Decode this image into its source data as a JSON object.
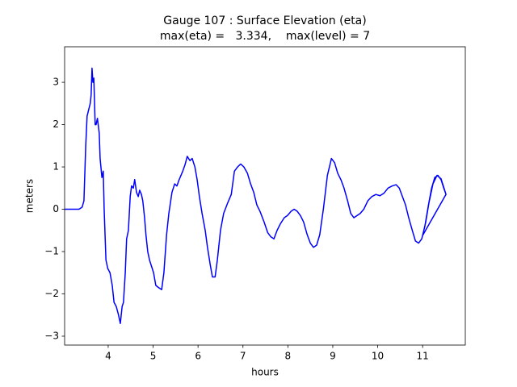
{
  "chart_data": {
    "type": "line",
    "title": [
      "Gauge 107 : Surface Elevation (eta)",
      "max(eta) =   3.334,    max(level) = 7"
    ],
    "xlabel": "hours",
    "ylabel": "meters",
    "color": "blue",
    "x": [
      3.03,
      3.2,
      3.35,
      3.42,
      3.46,
      3.5,
      3.53,
      3.6,
      3.62,
      3.64,
      3.66,
      3.68,
      3.71,
      3.73,
      3.76,
      3.8,
      3.82,
      3.86,
      3.89,
      3.91,
      3.93,
      3.95,
      3.99,
      4.04,
      4.09,
      4.13,
      4.18,
      4.23,
      4.27,
      4.31,
      4.34,
      4.38,
      4.41,
      4.45,
      4.49,
      4.52,
      4.56,
      4.59,
      4.63,
      4.67,
      4.7,
      4.74,
      4.77,
      4.81,
      4.84,
      4.88,
      4.92,
      4.95,
      5.01,
      5.06,
      5.12,
      5.19,
      5.24,
      5.3,
      5.35,
      5.42,
      5.48,
      5.53,
      5.58,
      5.66,
      5.71,
      5.76,
      5.82,
      5.87,
      5.93,
      5.98,
      6.03,
      6.09,
      6.16,
      6.21,
      6.27,
      6.32,
      6.38,
      6.43,
      6.5,
      6.57,
      6.66,
      6.74,
      6.81,
      6.88,
      6.95,
      7.02,
      7.1,
      7.17,
      7.24,
      7.31,
      7.38,
      7.47,
      7.55,
      7.62,
      7.69,
      7.76,
      7.83,
      7.92,
      7.99,
      8.07,
      8.14,
      8.21,
      8.28,
      8.35,
      8.43,
      8.5,
      8.57,
      8.64,
      8.71,
      8.79,
      8.88,
      8.97,
      9.04,
      9.11,
      9.18,
      9.25,
      9.33,
      9.4,
      9.47,
      9.54,
      9.61,
      9.69,
      9.78,
      9.87,
      9.96,
      10.05,
      10.14,
      10.23,
      10.32,
      10.41,
      10.48,
      10.55,
      10.62,
      10.69,
      10.77,
      10.84,
      10.91,
      10.98,
      11.05,
      11.13,
      11.2,
      11.27,
      11.34,
      11.41,
      11.47,
      11.52,
      11.0,
      11.07,
      11.14,
      11.23,
      11.32,
      11.41,
      11.52
    ],
    "values": [
      0,
      0,
      0,
      0.05,
      0.2,
      1.5,
      2.2,
      2.5,
      2.7,
      3.334,
      3.0,
      3.1,
      2.0,
      2.0,
      2.15,
      1.8,
      1.2,
      0.75,
      0.9,
      0,
      -0.6,
      -1.2,
      -1.4,
      -1.5,
      -1.8,
      -2.2,
      -2.3,
      -2.5,
      -2.7,
      -2.3,
      -2.2,
      -1.5,
      -0.7,
      -0.5,
      0.3,
      0.55,
      0.5,
      0.7,
      0.4,
      0.3,
      0.45,
      0.35,
      0.2,
      -0.2,
      -0.6,
      -1.0,
      -1.2,
      -1.3,
      -1.5,
      -1.8,
      -1.85,
      -1.9,
      -1.5,
      -0.6,
      -0.1,
      0.4,
      0.6,
      0.55,
      0.7,
      0.9,
      1.05,
      1.25,
      1.15,
      1.2,
      1.0,
      0.7,
      0.3,
      -0.1,
      -0.5,
      -0.9,
      -1.3,
      -1.6,
      -1.6,
      -1.2,
      -0.5,
      -0.1,
      0.15,
      0.35,
      0.9,
      1.0,
      1.07,
      1.0,
      0.85,
      0.6,
      0.4,
      0.1,
      -0.05,
      -0.3,
      -0.55,
      -0.65,
      -0.7,
      -0.5,
      -0.35,
      -0.2,
      -0.15,
      -0.05,
      0,
      -0.05,
      -0.15,
      -0.3,
      -0.6,
      -0.8,
      -0.9,
      -0.85,
      -0.6,
      0,
      0.8,
      1.2,
      1.1,
      0.85,
      0.7,
      0.5,
      0.2,
      -0.1,
      -0.2,
      -0.15,
      -0.1,
      0,
      0.2,
      0.3,
      0.35,
      0.32,
      0.38,
      0.5,
      0.55,
      0.58,
      0.5,
      0.3,
      0.1,
      -0.2,
      -0.5,
      -0.75,
      -0.8,
      -0.7,
      -0.4,
      0.1,
      0.5,
      0.75,
      0.8,
      0.7,
      0.5,
      0.35,
      -0.62,
      -0.3,
      0.15,
      0.6,
      0.8,
      0.72,
      0.35
    ],
    "xlim": [
      3.03,
      11.95
    ],
    "ylim": [
      -3.21,
      3.84
    ],
    "xticks": [
      4,
      5,
      6,
      7,
      8,
      9,
      10,
      11
    ],
    "yticks": [
      {
        "value": -3,
        "label": "−3"
      },
      {
        "value": -2,
        "label": "−2"
      },
      {
        "value": -1,
        "label": "−1"
      },
      0,
      1,
      2,
      3
    ]
  }
}
